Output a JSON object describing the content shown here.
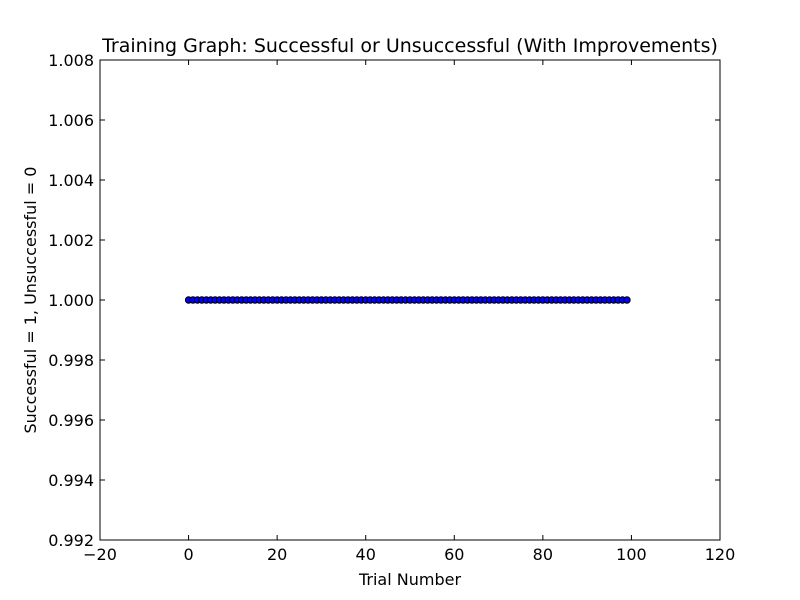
{
  "chart_data": {
    "type": "scatter",
    "title": "Training Graph: Successful or Unsuccessful (With Improvements)",
    "xlabel": "Trial Number",
    "ylabel": "Successful = 1, Unsuccessful = 0",
    "xlim": [
      -20,
      120
    ],
    "ylim": [
      0.992,
      1.008
    ],
    "xticks": [
      -20,
      0,
      20,
      40,
      60,
      80,
      100,
      120
    ],
    "xtick_labels": [
      "−20",
      "0",
      "20",
      "40",
      "60",
      "80",
      "100",
      "120"
    ],
    "yticks": [
      0.992,
      0.994,
      0.996,
      0.998,
      1.0,
      1.002,
      1.004,
      1.006,
      1.008
    ],
    "ytick_labels": [
      "0.992",
      "0.994",
      "0.996",
      "0.998",
      "1.000",
      "1.002",
      "1.004",
      "1.006",
      "1.008"
    ],
    "grid": false,
    "marker_color": "#0000ff",
    "marker_edge_color": "#000000",
    "series": [
      {
        "x": [
          0,
          1,
          2,
          3,
          4,
          5,
          6,
          7,
          8,
          9,
          10,
          11,
          12,
          13,
          14,
          15,
          16,
          17,
          18,
          19,
          20,
          21,
          22,
          23,
          24,
          25,
          26,
          27,
          28,
          29,
          30,
          31,
          32,
          33,
          34,
          35,
          36,
          37,
          38,
          39,
          40,
          41,
          42,
          43,
          44,
          45,
          46,
          47,
          48,
          49,
          50,
          51,
          52,
          53,
          54,
          55,
          56,
          57,
          58,
          59,
          60,
          61,
          62,
          63,
          64,
          65,
          66,
          67,
          68,
          69,
          70,
          71,
          72,
          73,
          74,
          75,
          76,
          77,
          78,
          79,
          80,
          81,
          82,
          83,
          84,
          85,
          86,
          87,
          88,
          89,
          90,
          91,
          92,
          93,
          94,
          95,
          96,
          97,
          98,
          99
        ],
        "y": [
          1,
          1,
          1,
          1,
          1,
          1,
          1,
          1,
          1,
          1,
          1,
          1,
          1,
          1,
          1,
          1,
          1,
          1,
          1,
          1,
          1,
          1,
          1,
          1,
          1,
          1,
          1,
          1,
          1,
          1,
          1,
          1,
          1,
          1,
          1,
          1,
          1,
          1,
          1,
          1,
          1,
          1,
          1,
          1,
          1,
          1,
          1,
          1,
          1,
          1,
          1,
          1,
          1,
          1,
          1,
          1,
          1,
          1,
          1,
          1,
          1,
          1,
          1,
          1,
          1,
          1,
          1,
          1,
          1,
          1,
          1,
          1,
          1,
          1,
          1,
          1,
          1,
          1,
          1,
          1,
          1,
          1,
          1,
          1,
          1,
          1,
          1,
          1,
          1,
          1,
          1,
          1,
          1,
          1,
          1,
          1,
          1,
          1,
          1,
          1
        ]
      }
    ]
  }
}
